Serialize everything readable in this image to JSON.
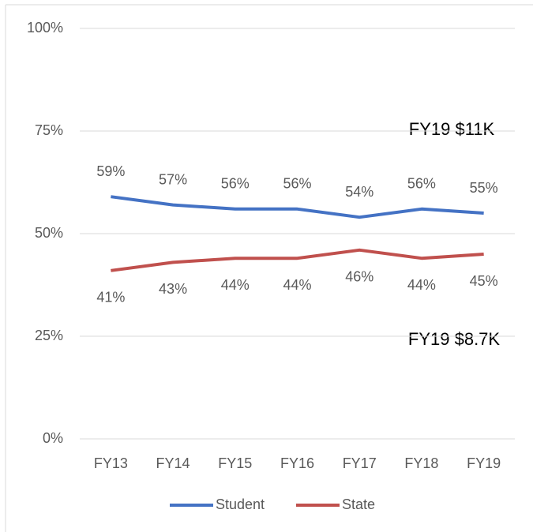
{
  "chart_data": {
    "type": "line",
    "categories": [
      "FY13",
      "FY14",
      "FY15",
      "FY16",
      "FY17",
      "FY18",
      "FY19"
    ],
    "series": [
      {
        "name": "Student",
        "color": "#4472c4",
        "values": [
          59,
          57,
          56,
          56,
          54,
          56,
          55
        ],
        "value_labels": [
          "59%",
          "57%",
          "56%",
          "56%",
          "54%",
          "56%",
          "55%"
        ]
      },
      {
        "name": "State",
        "color": "#c0504d",
        "values": [
          41,
          43,
          44,
          44,
          46,
          44,
          45
        ],
        "value_labels": [
          "41%",
          "43%",
          "44%",
          "44%",
          "46%",
          "44%",
          "45%"
        ]
      }
    ],
    "annotations": [
      "FY19 $11K",
      "FY19 $8.7K"
    ],
    "ylim": [
      0,
      100
    ],
    "yticks": [
      {
        "value": 0,
        "label": "0%"
      },
      {
        "value": 25,
        "label": "25%"
      },
      {
        "value": 50,
        "label": "50%"
      },
      {
        "value": 75,
        "label": "75%"
      },
      {
        "value": 100,
        "label": "100%"
      }
    ],
    "grid": true,
    "legend": "bottom"
  }
}
